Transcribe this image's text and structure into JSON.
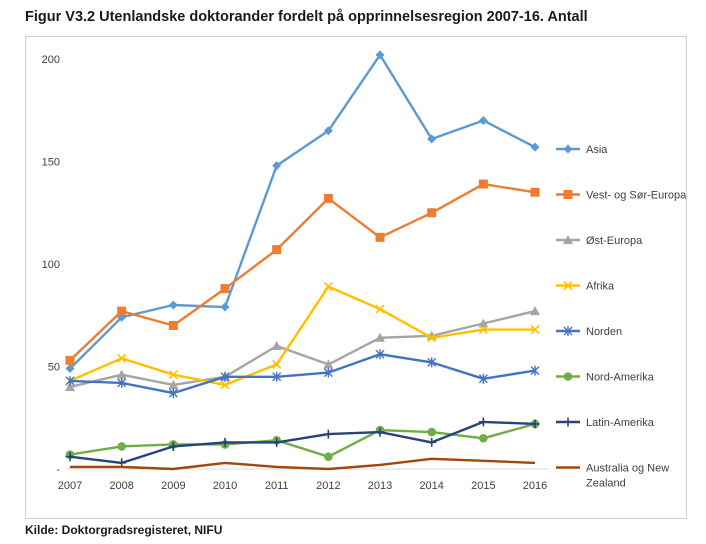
{
  "title": "Figur V3.2 Utenlandske doktorander fordelt på opprinnelsesregion 2007-16. Antall",
  "source": "Kilde: Doktorgradsregisteret, NIFU",
  "chart_data": {
    "type": "line",
    "title": "Figur V3.2 Utenlandske doktorander fordelt på opprinnelsesregion 2007-16. Antall",
    "xlabel": "",
    "ylabel": "",
    "categories": [
      "2007",
      "2008",
      "2009",
      "2010",
      "2011",
      "2012",
      "2013",
      "2014",
      "2015",
      "2016"
    ],
    "ylim": [
      0,
      200
    ],
    "yticks": [
      "-",
      "50",
      "100",
      "150",
      "200"
    ],
    "grid": false,
    "legend_position": "right",
    "series": [
      {
        "name": "Asia",
        "color": "#5B9BD5",
        "marker": "diamond",
        "values": [
          49,
          74,
          80,
          79,
          148,
          165,
          202,
          161,
          170,
          157
        ]
      },
      {
        "name": "Vest- og Sør-Europa",
        "color": "#ED7D31",
        "marker": "square",
        "values": [
          53,
          77,
          70,
          88,
          107,
          132,
          113,
          125,
          139,
          135
        ]
      },
      {
        "name": "Øst-Europa",
        "color": "#A5A5A5",
        "marker": "triangle",
        "values": [
          40,
          46,
          41,
          45,
          60,
          51,
          64,
          65,
          71,
          77
        ]
      },
      {
        "name": "Afrika",
        "color": "#FFC000",
        "marker": "x",
        "values": [
          43,
          54,
          46,
          41,
          51,
          89,
          78,
          64,
          68,
          68
        ]
      },
      {
        "name": "Norden",
        "color": "#4472C4",
        "marker": "star",
        "values": [
          43,
          42,
          37,
          45,
          45,
          47,
          56,
          52,
          44,
          48
        ]
      },
      {
        "name": "Nord-Amerika",
        "color": "#70AD47",
        "marker": "circle",
        "values": [
          7,
          11,
          12,
          12,
          14,
          6,
          19,
          18,
          15,
          22
        ]
      },
      {
        "name": "Latin-Amerika",
        "color": "#264478",
        "marker": "plus",
        "values": [
          6,
          3,
          11,
          13,
          13,
          17,
          18,
          13,
          23,
          22
        ]
      },
      {
        "name": "Australia og New Zealand",
        "color": "#9E480E",
        "marker": "none",
        "values": [
          1,
          1,
          0,
          3,
          1,
          0,
          2,
          5,
          4,
          3
        ]
      }
    ]
  }
}
